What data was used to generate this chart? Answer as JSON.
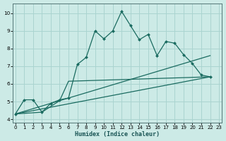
{
  "xlabel": "Humidex (Indice chaleur)",
  "bg_color": "#cceae6",
  "grid_color": "#aad4d0",
  "line_color": "#1a6b60",
  "xlim": [
    -0.3,
    23.3
  ],
  "ylim": [
    3.8,
    10.55
  ],
  "xticks": [
    0,
    1,
    2,
    3,
    4,
    5,
    6,
    7,
    8,
    9,
    10,
    11,
    12,
    13,
    14,
    15,
    16,
    17,
    18,
    19,
    20,
    21,
    22,
    23
  ],
  "yticks": [
    4,
    5,
    6,
    7,
    8,
    9,
    10
  ],
  "main_x": [
    0,
    1,
    2,
    3,
    4,
    5,
    6,
    7,
    8,
    9,
    10,
    11,
    12,
    13,
    14,
    15,
    16,
    17,
    18,
    19,
    20,
    21,
    22
  ],
  "main_y": [
    4.3,
    5.1,
    5.1,
    4.4,
    4.9,
    5.1,
    5.2,
    7.1,
    7.5,
    9.0,
    8.55,
    9.0,
    10.1,
    9.3,
    8.5,
    8.8,
    7.6,
    8.4,
    8.3,
    7.65,
    7.15,
    6.5,
    6.4
  ],
  "line2_x": [
    0,
    3,
    5,
    6,
    22
  ],
  "line2_y": [
    4.3,
    4.4,
    5.05,
    6.15,
    6.4
  ],
  "line3_x": [
    0,
    22
  ],
  "line3_y": [
    4.3,
    7.6
  ],
  "line4_x": [
    0,
    22
  ],
  "line4_y": [
    4.3,
    6.4
  ]
}
